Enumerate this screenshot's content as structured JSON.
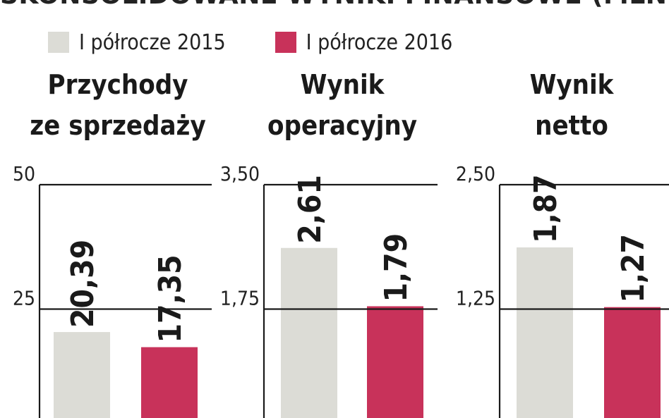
{
  "headline": "SKONSOLIDOWANE WYNIKI FINANSOWE (MLN ZŁ)",
  "colors": {
    "series_2015": "#dcdcd6",
    "series_2016": "#c8325a",
    "axis": "#1a1a1a"
  },
  "chart_data": [
    {
      "type": "bar",
      "title": "Przychody\nze sprzedaży",
      "categories": [
        "Przychody ze sprzedaży"
      ],
      "series": [
        {
          "name": "I półrocze 2015",
          "values": [
            20.39
          ],
          "label": "20,39"
        },
        {
          "name": "I półrocze 2016",
          "values": [
            17.35
          ],
          "label": "17,35"
        }
      ],
      "ylim": [
        0,
        50
      ],
      "yticks": [
        "25",
        "50"
      ],
      "ytick_values": [
        25,
        50
      ],
      "grid": true
    },
    {
      "type": "bar",
      "title": "Wynik\noperacyjny",
      "categories": [
        "Wynik operacyjny"
      ],
      "series": [
        {
          "name": "I półrocze 2015",
          "values": [
            2.61
          ],
          "label": "2,61"
        },
        {
          "name": "I półrocze 2016",
          "values": [
            1.79
          ],
          "label": "1,79"
        }
      ],
      "ylim": [
        0,
        3.5
      ],
      "yticks": [
        "1,75",
        "3,50"
      ],
      "ytick_values": [
        1.75,
        3.5
      ],
      "grid": true
    },
    {
      "type": "bar",
      "title": "Wynik\nnetto",
      "categories": [
        "Wynik netto"
      ],
      "series": [
        {
          "name": "I półrocze 2015",
          "values": [
            1.87
          ],
          "label": "1,87"
        },
        {
          "name": "I półrocze 2016",
          "values": [
            1.27
          ],
          "label": "1,27"
        }
      ],
      "ylim": [
        0,
        2.5
      ],
      "yticks": [
        "1,25",
        "2,50"
      ],
      "ytick_values": [
        1.25,
        2.5
      ],
      "grid": true
    }
  ]
}
